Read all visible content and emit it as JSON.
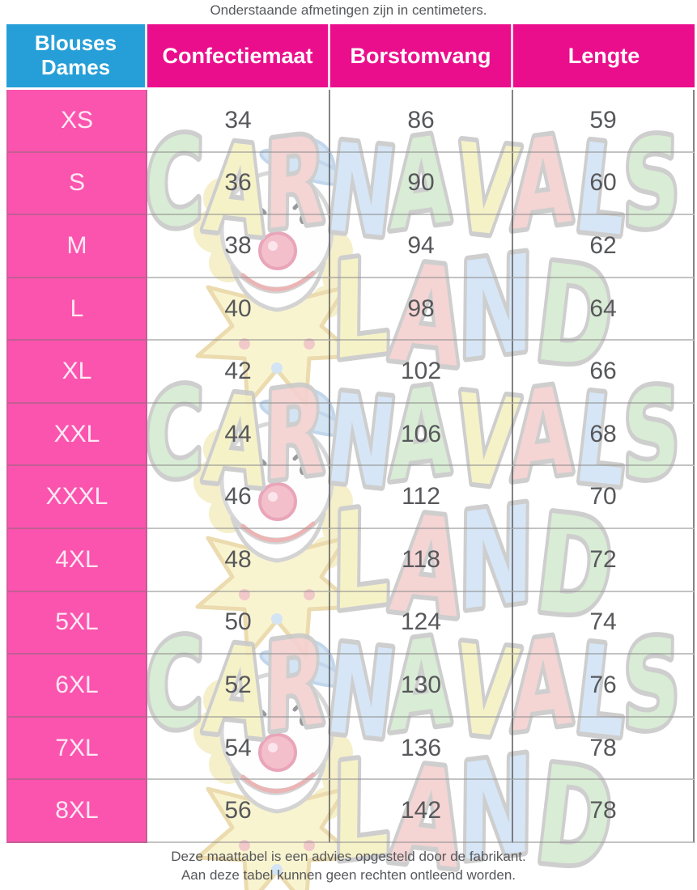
{
  "caption": "Onderstaande afmetingen zijn in centimeters.",
  "table": {
    "corner": {
      "line1": "Blouses",
      "line2": "Dames"
    },
    "columns": [
      "Confectiemaat",
      "Borstomvang",
      "Lengte"
    ],
    "rows": [
      {
        "size": "XS",
        "confectiemaat": "34",
        "borstomvang": "86",
        "lengte": "59"
      },
      {
        "size": "S",
        "confectiemaat": "36",
        "borstomvang": "90",
        "lengte": "60"
      },
      {
        "size": "M",
        "confectiemaat": "38",
        "borstomvang": "94",
        "lengte": "62"
      },
      {
        "size": "L",
        "confectiemaat": "40",
        "borstomvang": "98",
        "lengte": "64"
      },
      {
        "size": "XL",
        "confectiemaat": "42",
        "borstomvang": "102",
        "lengte": "66"
      },
      {
        "size": "XXL",
        "confectiemaat": "44",
        "borstomvang": "106",
        "lengte": "68"
      },
      {
        "size": "XXXL",
        "confectiemaat": "46",
        "borstomvang": "112",
        "lengte": "70"
      },
      {
        "size": "4XL",
        "confectiemaat": "48",
        "borstomvang": "118",
        "lengte": "72"
      },
      {
        "size": "5XL",
        "confectiemaat": "50",
        "borstomvang": "124",
        "lengte": "74"
      },
      {
        "size": "6XL",
        "confectiemaat": "52",
        "borstomvang": "130",
        "lengte": "76"
      },
      {
        "size": "7XL",
        "confectiemaat": "54",
        "borstomvang": "136",
        "lengte": "78"
      },
      {
        "size": "8XL",
        "confectiemaat": "56",
        "borstomvang": "142",
        "lengte": "78"
      }
    ]
  },
  "watermark": {
    "word_top": "CARNAVALS",
    "word_bottom": "LAND",
    "icon": "clown-icon",
    "letter_colors": [
      "#d5ebd1",
      "#f6f1c3",
      "#f5d0d0",
      "#d2e4f6"
    ]
  },
  "footer": {
    "line1": "Deze maattabel is een advies opgesteld door de fabrikant.",
    "line2": "Aan deze tabel kunnen geen rechten ontleend worden."
  },
  "colors": {
    "corner_cyan": "#269fd8",
    "header_magenta": "#eb0e8c",
    "row_pink": "#fb54ae",
    "text_gray": "#57585b",
    "size_label": "#fde9f4"
  }
}
